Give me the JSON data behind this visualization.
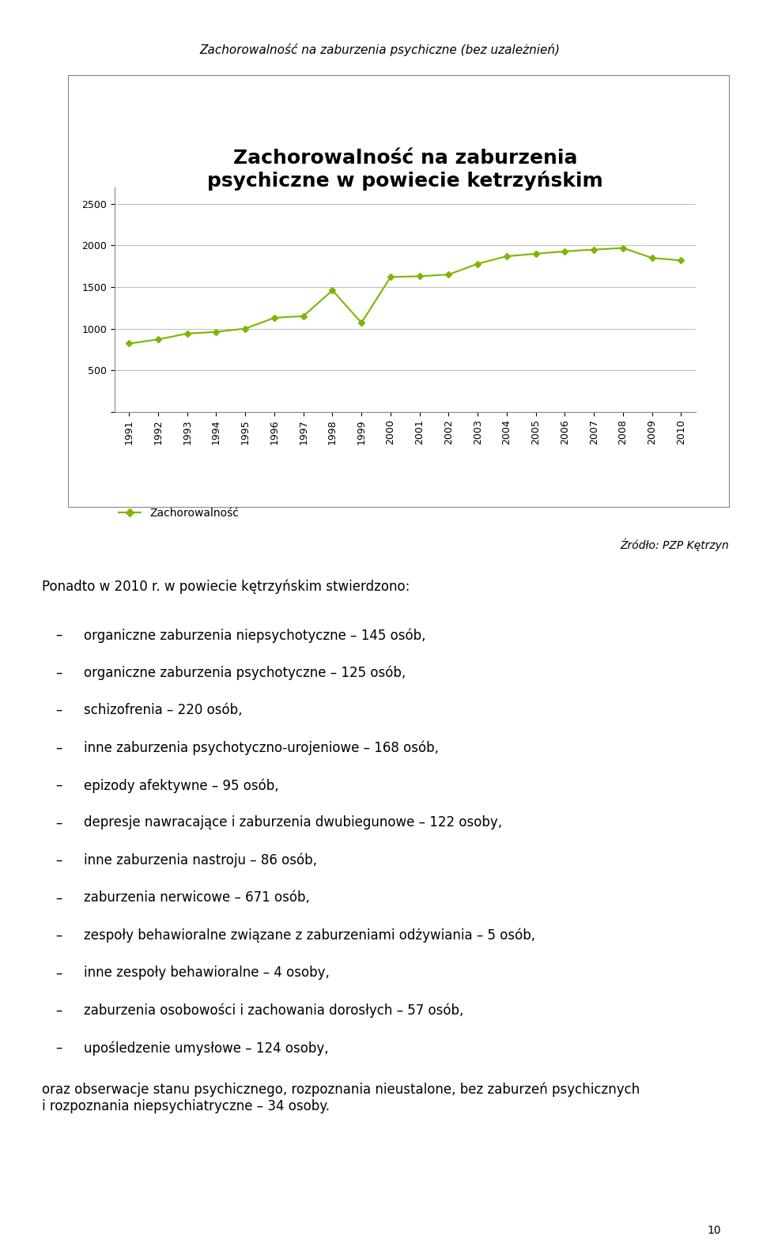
{
  "page_title": "Zachorowalność na zaburzenia psychiczne (bez uzależnień)",
  "chart_title": "Zachorowalność na zaburzenia\npsychiczne w powiecie ketrzyńskim",
  "years": [
    1991,
    1992,
    1993,
    1994,
    1995,
    1996,
    1997,
    1998,
    1999,
    2000,
    2001,
    2002,
    2003,
    2004,
    2005,
    2006,
    2007,
    2008,
    2009,
    2010
  ],
  "data_values": [
    820,
    870,
    940,
    960,
    1000,
    1130,
    1150,
    1460,
    1070,
    1620,
    1630,
    1650,
    1780,
    1870,
    1900,
    1930,
    1950,
    1970,
    1850,
    1820
  ],
  "line_color": "#7db500",
  "marker_color": "#7db500",
  "legend_label": "Zachorowalność",
  "source_text": "Źródło: PZP Kętrzyn",
  "yticks": [
    0,
    500,
    1000,
    1500,
    2000,
    2500
  ],
  "ylim": [
    0,
    2700
  ],
  "intro_text": "Ponadto w 2010 r. w powiecie kętrzyńskim stwierdzono:",
  "bullet_items": [
    "organiczne zaburzenia niepsychotyczne – 145 osób,",
    "organiczne zaburzenia psychotyczne – 125 osób,",
    "schizofrenia – 220 osób,",
    "inne zaburzenia psychotyczno-urojeniowe – 168 osób,",
    "epizody afektywne – 95 osób,",
    "depresje nawracające i zaburzenia dwubiegunowe – 122 osoby,",
    "inne zaburzenia nastroju – 86 osób,",
    "zaburzenia nerwicowe – 671 osób,",
    "zespoły behawioralne związane z zaburzeniami odżywiania – 5 osób,",
    "inne zespoły behawioralne – 4 osoby,",
    "zaburzenia osobowości i zachowania dorosłych – 57 osób,",
    "upośledzenie umysłowe – 124 osoby,"
  ],
  "closing_text": "oraz obserwacje stanu psychicznego, rozpoznania nieustalone, bez zaburzeń psychicznych\ni rozpoznania niepsychiatryczne – 34 osoby.",
  "page_number": "10",
  "bg_color": "#ffffff",
  "grid_color": "#c0c0c0",
  "text_color": "#000000",
  "page_title_fontsize": 11,
  "chart_title_fontsize": 18,
  "axis_fontsize": 9,
  "body_fontsize": 12,
  "legend_fontsize": 10,
  "source_fontsize": 10
}
